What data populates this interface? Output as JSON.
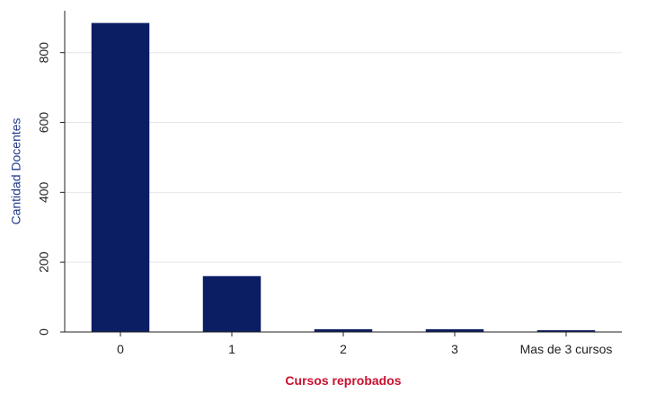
{
  "chart_data": {
    "type": "bar",
    "categories": [
      "0",
      "1",
      "2",
      "3",
      "Mas de 3 cursos"
    ],
    "values": [
      885,
      160,
      8,
      8,
      5
    ],
    "title": "",
    "xlabel": "Cursos reprobados",
    "ylabel": "Cantidad Docentes",
    "ylim": [
      0,
      920
    ],
    "yticks": [
      0,
      200,
      400,
      600,
      800
    ],
    "grid": true,
    "legend": "none",
    "colors": {
      "bar": "#0b1d63",
      "xlabel": "#c8102e",
      "ylabel": "#1f3a8a",
      "grid": "#e6e6e6",
      "axis": "#222222"
    }
  }
}
